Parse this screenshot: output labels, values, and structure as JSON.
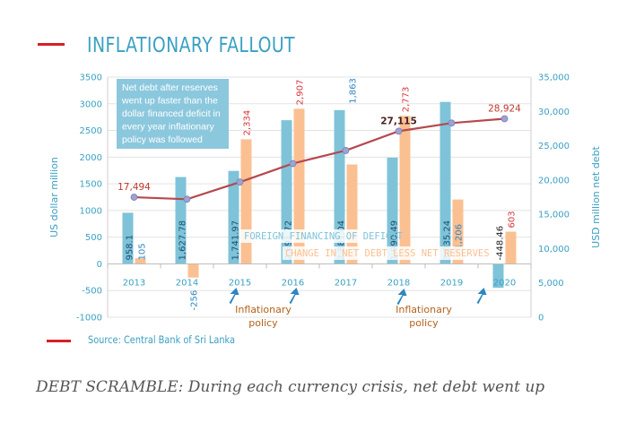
{
  "title": "INFLATIONARY FALLOUT",
  "source": "Source: Central Bank of Sri Lanka",
  "caption": "DEBT SCRAMBLE: During each currency crisis, net debt went up",
  "annotation": {
    "lines": [
      "Net debt after reserves",
      "went up faster than the",
      "dollar financed deficit in",
      "every year inflationary",
      "policy was followed"
    ]
  },
  "inflationary_policy_label": [
    "Inflationary",
    "policy"
  ],
  "colors": {
    "accent": "#d71f26",
    "blue": "#7fc3d9",
    "orange": "#fbc092",
    "line": "#b5494f",
    "marker": "#9ea3cf",
    "axis_text": "#3aa0c3"
  },
  "chart_data": {
    "type": "bar",
    "categories": [
      "2013",
      "2014",
      "2015",
      "2016",
      "2017",
      "2018",
      "2019",
      "2020"
    ],
    "ylabel": "US dollar million",
    "y2label": "USD million net debt",
    "ylim": [
      -1000,
      3500
    ],
    "y2lim": [
      0,
      35000
    ],
    "yticks": [
      -1000,
      -500,
      0,
      500,
      1000,
      1500,
      2000,
      2500,
      3000,
      3500
    ],
    "y2ticks": [
      "0",
      "5,000",
      "10,000",
      "15,000",
      "20,000",
      "25,000",
      "30,000",
      "35,000"
    ],
    "series": [
      {
        "name": "FOREIGN FINANCING OF DEFICIT",
        "type": "bar",
        "values": [
          958.1,
          1627.78,
          1741.97,
          2691.72,
          2881.04,
          1990.49,
          3035.24,
          -448.46
        ],
        "labels": [
          "958.1",
          "1,627.78",
          "1,741.97",
          "2,691.72",
          "2,881.04",
          "1,990.49",
          "3,035.24",
          "-448.46"
        ]
      },
      {
        "name": "CHANGE IN NET DEBT LESS NET RESERVES",
        "type": "bar",
        "values": [
          105,
          -256,
          2334,
          2907,
          1863,
          2773,
          1206,
          603
        ],
        "labels": [
          "105",
          "-256",
          "2,334",
          "2,907",
          "1,863",
          "2,773",
          "1,206",
          "603"
        ]
      },
      {
        "name": "Net debt",
        "type": "line",
        "axis": "right",
        "values": [
          17494,
          17200,
          19700,
          22400,
          24300,
          27115,
          28300,
          28924
        ],
        "labels": [
          "17,494",
          "",
          "",
          "",
          "",
          "27,115",
          "",
          "28,924"
        ]
      }
    ]
  }
}
